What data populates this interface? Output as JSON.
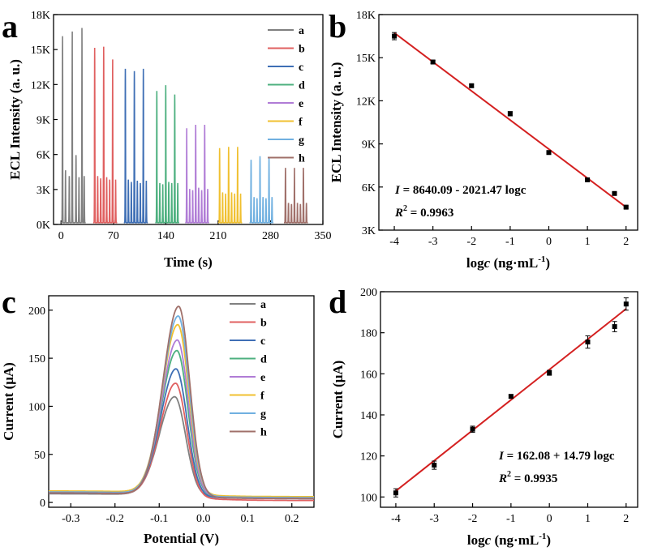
{
  "colors": {
    "a": "#808080",
    "b": "#e06060",
    "c": "#3f6fb5",
    "d": "#4db07f",
    "e": "#b07cd6",
    "f": "#f0c030",
    "g": "#70b0e0",
    "h": "#a0706a",
    "fit": "#d42020",
    "point": "#000000"
  },
  "chart_data": [
    {
      "panel": "a",
      "type": "line",
      "xlabel": "Time (s)",
      "ylabel": "ECL Intensity (a. u.)",
      "xlim": [
        -10,
        350
      ],
      "ylim": [
        0,
        18000
      ],
      "xticks": [
        0,
        70,
        140,
        210,
        280,
        350
      ],
      "xtick_labels": [
        "0",
        "70",
        "140",
        "210",
        "280",
        "350"
      ],
      "yticks": [
        0,
        3000,
        6000,
        9000,
        12000,
        15000,
        18000
      ],
      "ytick_labels": [
        "0K",
        "3K",
        "6K",
        "9K",
        "12K",
        "15K",
        "18K"
      ],
      "legend": [
        "a",
        "b",
        "c",
        "d",
        "e",
        "f",
        "g",
        "h"
      ],
      "legend_position": "top-right",
      "series": [
        {
          "name": "a",
          "peak_times": [
            2,
            6,
            11,
            15,
            20,
            24,
            28,
            31
          ],
          "peak_values": [
            16000,
            4500,
            4000,
            16400,
            5800,
            3900,
            16700,
            4000
          ]
        },
        {
          "name": "b",
          "peak_times": [
            45,
            49,
            53,
            57,
            61,
            65,
            69,
            73
          ],
          "peak_values": [
            15000,
            4000,
            3800,
            15100,
            3900,
            3700,
            14000,
            3700
          ]
        },
        {
          "name": "c",
          "peak_times": [
            86,
            90,
            94,
            98,
            102,
            106,
            110,
            114
          ],
          "peak_values": [
            13200,
            3700,
            3500,
            13000,
            3600,
            3400,
            13200,
            3600
          ]
        },
        {
          "name": "d",
          "peak_times": [
            128,
            132,
            136,
            140,
            144,
            148,
            152,
            156
          ],
          "peak_values": [
            11300,
            3400,
            3300,
            11800,
            3500,
            3400,
            11000,
            3400
          ]
        },
        {
          "name": "e",
          "peak_times": [
            168,
            172,
            176,
            180,
            184,
            188,
            192,
            196
          ],
          "peak_values": [
            8100,
            2900,
            2800,
            8400,
            3000,
            2800,
            8400,
            2900
          ]
        },
        {
          "name": "f",
          "peak_times": [
            212,
            216,
            220,
            224,
            228,
            232,
            236,
            240
          ],
          "peak_values": [
            6400,
            2600,
            2500,
            6500,
            2600,
            2500,
            6500,
            2500
          ]
        },
        {
          "name": "g",
          "peak_times": [
            254,
            258,
            262,
            266,
            270,
            274,
            278,
            282
          ],
          "peak_values": [
            5400,
            2200,
            2100,
            5700,
            2200,
            2100,
            5600,
            2200
          ]
        },
        {
          "name": "h",
          "peak_times": [
            300,
            304,
            308,
            312,
            316,
            320,
            324,
            328
          ],
          "peak_values": [
            4700,
            1700,
            1600,
            4700,
            1700,
            1600,
            4700,
            1700
          ]
        }
      ]
    },
    {
      "panel": "b",
      "type": "scatter",
      "xlabel": "logc (ng·mL⁻¹)",
      "ylabel": "ECL Intensity (a. u.)",
      "xlim": [
        -4.4,
        2.3
      ],
      "ylim": [
        3000,
        18000
      ],
      "xticks": [
        -4,
        -3,
        -2,
        -1,
        0,
        1,
        2
      ],
      "xtick_labels": [
        "-4",
        "-3",
        "-2",
        "-1",
        "0",
        "1",
        "2"
      ],
      "yticks": [
        3000,
        6000,
        9000,
        12000,
        15000,
        18000
      ],
      "ytick_labels": [
        "3K",
        "6K",
        "9K",
        "12K",
        "15K",
        "18K"
      ],
      "x": [
        -4,
        -3,
        -2,
        -1,
        0,
        1,
        1.7,
        2
      ],
      "y": [
        16500,
        14700,
        13050,
        11100,
        8400,
        6500,
        5550,
        4600
      ],
      "err": [
        250,
        100,
        100,
        150,
        100,
        100,
        80,
        80
      ],
      "fit": {
        "intercept": 8640.09,
        "slope": -2021.47
      },
      "equation_prefix": "I",
      "equation_text": " = 8640.09 - 2021.47 logc",
      "r2_text": " = 0.9963"
    },
    {
      "panel": "c",
      "type": "line",
      "xlabel": "Potential (V)",
      "ylabel": "Current (μA)",
      "xlim": [
        -0.35,
        0.25
      ],
      "ylim": [
        -5,
        215
      ],
      "xticks": [
        -0.3,
        -0.2,
        -0.1,
        0.0,
        0.1,
        0.2
      ],
      "xtick_labels": [
        "-0.3",
        "-0.2",
        "-0.1",
        "0.0",
        "0.1",
        "0.2"
      ],
      "yticks": [
        0,
        50,
        100,
        150,
        200
      ],
      "ytick_labels": [
        "0",
        "50",
        "100",
        "150",
        "200"
      ],
      "legend": [
        "a",
        "b",
        "c",
        "d",
        "e",
        "f",
        "g",
        "h"
      ],
      "legend_position": "top-right",
      "series": [
        {
          "name": "a",
          "peak_potential": -0.065,
          "peak_current": 110,
          "baseline_left": 9,
          "baseline_right": 5
        },
        {
          "name": "b",
          "peak_potential": -0.063,
          "peak_current": 124,
          "baseline_left": 10,
          "baseline_right": 2
        },
        {
          "name": "c",
          "peak_potential": -0.062,
          "peak_current": 139,
          "baseline_left": 10,
          "baseline_right": 4
        },
        {
          "name": "d",
          "peak_potential": -0.06,
          "peak_current": 158,
          "baseline_left": 11,
          "baseline_right": 5
        },
        {
          "name": "e",
          "peak_potential": -0.059,
          "peak_current": 169,
          "baseline_left": 11,
          "baseline_right": 5
        },
        {
          "name": "f",
          "peak_potential": -0.058,
          "peak_current": 185,
          "baseline_left": 12,
          "baseline_right": 6
        },
        {
          "name": "g",
          "peak_potential": -0.057,
          "peak_current": 194,
          "baseline_left": 11,
          "baseline_right": 5
        },
        {
          "name": "h",
          "peak_potential": -0.056,
          "peak_current": 204,
          "baseline_left": 10,
          "baseline_right": 4
        }
      ]
    },
    {
      "panel": "d",
      "type": "scatter",
      "xlabel": "logc (ng·mL⁻¹)",
      "ylabel": "Current (μA)",
      "xlim": [
        -4.4,
        2.3
      ],
      "ylim": [
        95,
        200
      ],
      "xticks": [
        -4,
        -3,
        -2,
        -1,
        0,
        1,
        2
      ],
      "xtick_labels": [
        "-4",
        "-3",
        "-2",
        "-1",
        "0",
        "1",
        "2"
      ],
      "yticks": [
        100,
        120,
        140,
        160,
        180,
        200
      ],
      "ytick_labels": [
        "100",
        "120",
        "140",
        "160",
        "180",
        "200"
      ],
      "x": [
        -4,
        -3,
        -2,
        -1,
        0,
        1,
        1.7,
        2
      ],
      "y": [
        102,
        115.5,
        133,
        149,
        160.5,
        175.5,
        183,
        194
      ],
      "err": [
        2,
        2,
        1.5,
        0.8,
        1.2,
        3,
        2.5,
        3
      ],
      "fit": {
        "intercept": 162.08,
        "slope": 14.79
      },
      "equation_prefix": "I",
      "equation_text": " = 162.08 + 14.79 logc",
      "r2_text": " = 0.9935"
    }
  ],
  "panel_labels": [
    "a",
    "b",
    "c",
    "d"
  ]
}
